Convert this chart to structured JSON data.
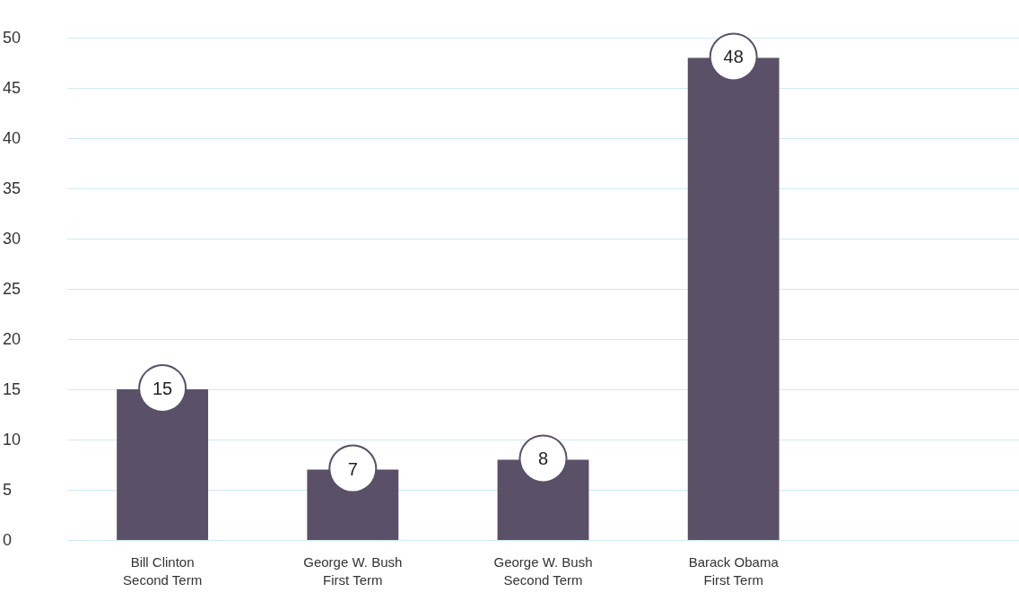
{
  "chart_data": {
    "type": "bar",
    "categories": [
      "Bill Clinton\nSecond Term",
      "George W. Bush\nFirst Term",
      "George W. Bush\nSecond Term",
      "Barack Obama\nFirst Term",
      null
    ],
    "values": [
      15,
      7,
      8,
      48,
      null
    ],
    "color": "#5a5068",
    "ylim": [
      0,
      50
    ],
    "yticks": [
      0,
      5,
      10,
      15,
      20,
      25,
      30,
      35,
      40,
      45,
      50
    ],
    "grid": "y",
    "data_labels": true
  }
}
